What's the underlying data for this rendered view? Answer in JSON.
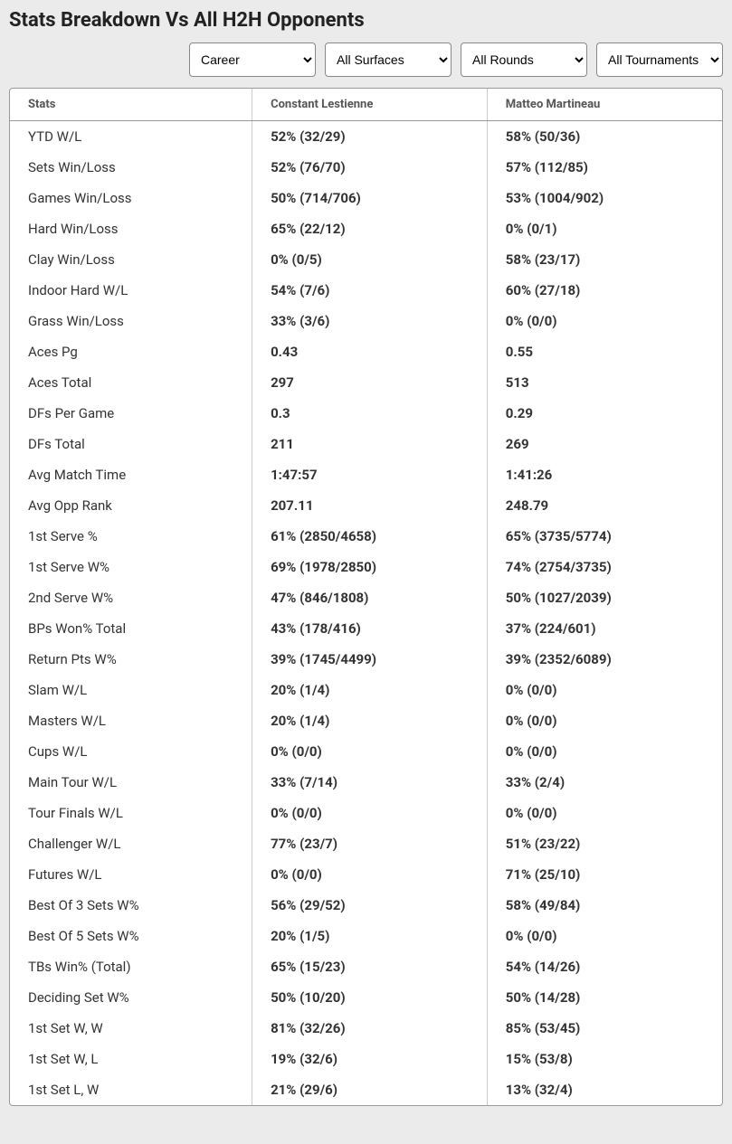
{
  "title": "Stats Breakdown Vs All H2H Opponents",
  "filters": {
    "period": "Career",
    "surface": "All Surfaces",
    "round": "All Rounds",
    "tournament": "All Tournaments"
  },
  "columns": [
    "Stats",
    "Constant Lestienne",
    "Matteo Martineau"
  ],
  "rows": [
    {
      "stat": "YTD W/L",
      "p1": "52% (32/29)",
      "p2": "58% (50/36)"
    },
    {
      "stat": "Sets Win/Loss",
      "p1": "52% (76/70)",
      "p2": "57% (112/85)"
    },
    {
      "stat": "Games Win/Loss",
      "p1": "50% (714/706)",
      "p2": "53% (1004/902)"
    },
    {
      "stat": "Hard Win/Loss",
      "p1": "65% (22/12)",
      "p2": "0% (0/1)"
    },
    {
      "stat": "Clay Win/Loss",
      "p1": "0% (0/5)",
      "p2": "58% (23/17)"
    },
    {
      "stat": "Indoor Hard W/L",
      "p1": "54% (7/6)",
      "p2": "60% (27/18)"
    },
    {
      "stat": "Grass Win/Loss",
      "p1": "33% (3/6)",
      "p2": "0% (0/0)"
    },
    {
      "stat": "Aces Pg",
      "p1": "0.43",
      "p2": "0.55"
    },
    {
      "stat": "Aces Total",
      "p1": "297",
      "p2": "513"
    },
    {
      "stat": "DFs Per Game",
      "p1": "0.3",
      "p2": "0.29"
    },
    {
      "stat": "DFs Total",
      "p1": "211",
      "p2": "269"
    },
    {
      "stat": "Avg Match Time",
      "p1": "1:47:57",
      "p2": "1:41:26"
    },
    {
      "stat": "Avg Opp Rank",
      "p1": "207.11",
      "p2": "248.79"
    },
    {
      "stat": "1st Serve %",
      "p1": "61% (2850/4658)",
      "p2": "65% (3735/5774)"
    },
    {
      "stat": "1st Serve W%",
      "p1": "69% (1978/2850)",
      "p2": "74% (2754/3735)"
    },
    {
      "stat": "2nd Serve W%",
      "p1": "47% (846/1808)",
      "p2": "50% (1027/2039)"
    },
    {
      "stat": "BPs Won% Total",
      "p1": "43% (178/416)",
      "p2": "37% (224/601)"
    },
    {
      "stat": "Return Pts W%",
      "p1": "39% (1745/4499)",
      "p2": "39% (2352/6089)"
    },
    {
      "stat": "Slam W/L",
      "p1": "20% (1/4)",
      "p2": "0% (0/0)"
    },
    {
      "stat": "Masters W/L",
      "p1": "20% (1/4)",
      "p2": "0% (0/0)"
    },
    {
      "stat": "Cups W/L",
      "p1": "0% (0/0)",
      "p2": "0% (0/0)"
    },
    {
      "stat": "Main Tour W/L",
      "p1": "33% (7/14)",
      "p2": "33% (2/4)"
    },
    {
      "stat": "Tour Finals W/L",
      "p1": "0% (0/0)",
      "p2": "0% (0/0)"
    },
    {
      "stat": "Challenger W/L",
      "p1": "77% (23/7)",
      "p2": "51% (23/22)"
    },
    {
      "stat": "Futures W/L",
      "p1": "0% (0/0)",
      "p2": "71% (25/10)"
    },
    {
      "stat": "Best Of 3 Sets W%",
      "p1": "56% (29/52)",
      "p2": "58% (49/84)"
    },
    {
      "stat": "Best Of 5 Sets W%",
      "p1": "20% (1/5)",
      "p2": "0% (0/0)"
    },
    {
      "stat": "TBs Win% (Total)",
      "p1": "65% (15/23)",
      "p2": "54% (14/26)"
    },
    {
      "stat": "Deciding Set W%",
      "p1": "50% (10/20)",
      "p2": "50% (14/28)"
    },
    {
      "stat": "1st Set W, W",
      "p1": "81% (32/26)",
      "p2": "85% (53/45)"
    },
    {
      "stat": "1st Set W, L",
      "p1": "19% (32/6)",
      "p2": "15% (53/8)"
    },
    {
      "stat": "1st Set L, W",
      "p1": "21% (29/6)",
      "p2": "13% (32/4)"
    }
  ]
}
